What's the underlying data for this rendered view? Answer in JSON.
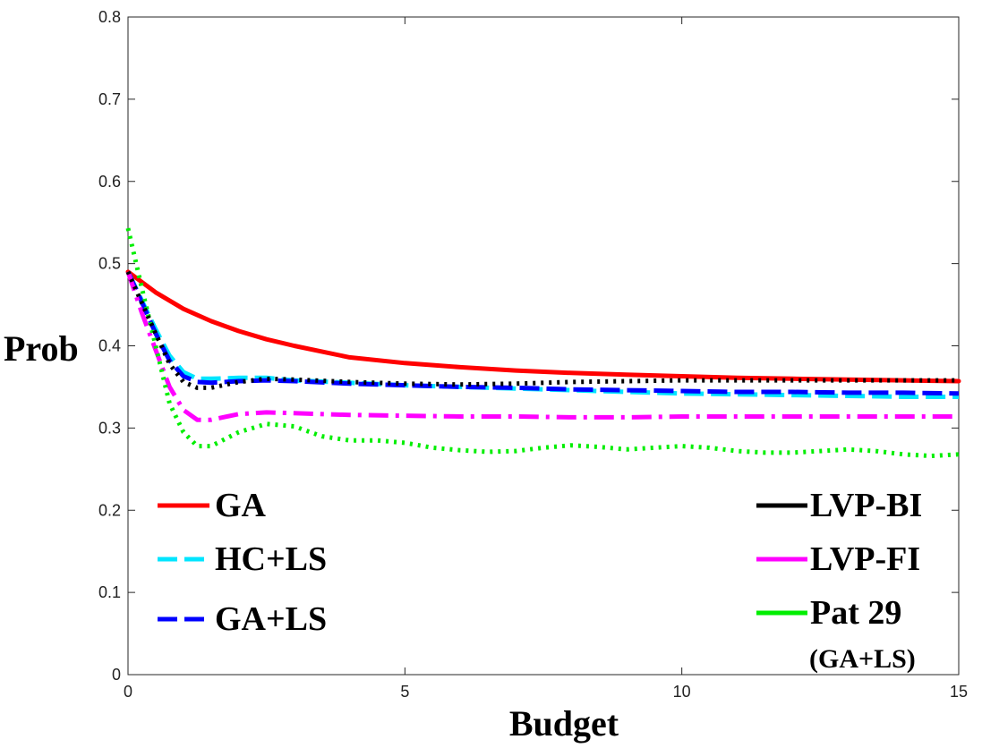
{
  "chart_data": {
    "type": "line",
    "xlabel": "Budget",
    "ylabel": "Prob",
    "xlim": [
      0,
      15
    ],
    "ylim": [
      0,
      0.8
    ],
    "xticks": [
      "0",
      "5",
      "10",
      "15"
    ],
    "yticks": [
      "0",
      "0.1",
      "0.2",
      "0.3",
      "0.4",
      "0.5",
      "0.6",
      "0.7",
      "0.8"
    ],
    "grid": false,
    "legend_left": [
      "GA",
      "HC+LS",
      "GA+LS"
    ],
    "legend_right": [
      "LVP-BI",
      "LVP-FI",
      "Pat 29",
      "(GA+LS)"
    ],
    "series": [
      {
        "name": "GA",
        "color": "#ff0000",
        "style": "solid",
        "x": [
          0,
          0.5,
          1,
          1.5,
          2,
          2.5,
          3,
          4,
          5,
          6,
          7,
          8,
          9,
          10,
          11,
          12,
          13,
          14,
          15
        ],
        "y": [
          0.49,
          0.465,
          0.445,
          0.43,
          0.418,
          0.408,
          0.4,
          0.386,
          0.379,
          0.374,
          0.37,
          0.367,
          0.365,
          0.363,
          0.361,
          0.36,
          0.359,
          0.358,
          0.357
        ]
      },
      {
        "name": "HC+LS",
        "color": "#00e5ff",
        "style": "dashed",
        "x": [
          0,
          0.25,
          0.5,
          0.75,
          1,
          1.25,
          1.5,
          2,
          2.5,
          3,
          4,
          5,
          6,
          7,
          8,
          9,
          10,
          11,
          12,
          13,
          14,
          15
        ],
        "y": [
          0.49,
          0.455,
          0.42,
          0.388,
          0.368,
          0.36,
          0.36,
          0.361,
          0.361,
          0.358,
          0.355,
          0.352,
          0.35,
          0.348,
          0.346,
          0.344,
          0.342,
          0.341,
          0.34,
          0.339,
          0.338,
          0.338
        ]
      },
      {
        "name": "GA+LS",
        "color": "#0000ff",
        "style": "dashed",
        "x": [
          0,
          0.25,
          0.5,
          0.75,
          1,
          1.25,
          1.5,
          2,
          2.5,
          3,
          4,
          5,
          6,
          7,
          8,
          9,
          10,
          11,
          12,
          13,
          14,
          15
        ],
        "y": [
          0.49,
          0.453,
          0.415,
          0.382,
          0.363,
          0.356,
          0.355,
          0.357,
          0.358,
          0.357,
          0.354,
          0.352,
          0.35,
          0.349,
          0.347,
          0.346,
          0.345,
          0.344,
          0.344,
          0.343,
          0.343,
          0.342
        ]
      },
      {
        "name": "LVP-BI",
        "color": "#000000",
        "style": "dotted",
        "x": [
          0,
          0.25,
          0.5,
          0.75,
          1,
          1.25,
          1.5,
          2,
          2.5,
          3,
          4,
          5,
          6,
          7,
          8,
          9,
          10,
          11,
          12,
          13,
          14,
          15
        ],
        "y": [
          0.49,
          0.452,
          0.415,
          0.378,
          0.356,
          0.349,
          0.349,
          0.356,
          0.36,
          0.359,
          0.356,
          0.354,
          0.353,
          0.354,
          0.356,
          0.357,
          0.358,
          0.358,
          0.358,
          0.358,
          0.358,
          0.358
        ]
      },
      {
        "name": "LVP-FI",
        "color": "#ff00ff",
        "style": "dashdot",
        "x": [
          0,
          0.25,
          0.5,
          0.75,
          1,
          1.25,
          1.5,
          2,
          2.5,
          3,
          4,
          5,
          6,
          7,
          8,
          9,
          10,
          11,
          12,
          13,
          14,
          15
        ],
        "y": [
          0.49,
          0.44,
          0.395,
          0.35,
          0.322,
          0.31,
          0.31,
          0.317,
          0.319,
          0.318,
          0.316,
          0.315,
          0.314,
          0.314,
          0.313,
          0.313,
          0.314,
          0.314,
          0.314,
          0.314,
          0.314,
          0.314
        ]
      },
      {
        "name": "Pat 29 (GA+LS)",
        "color": "#00ee00",
        "style": "dotted",
        "x": [
          0,
          0.25,
          0.5,
          0.75,
          1,
          1.25,
          1.5,
          2,
          2.5,
          3,
          3.5,
          4,
          4.5,
          5,
          5.5,
          6,
          6.5,
          7,
          7.5,
          8,
          8.5,
          9,
          9.5,
          10,
          10.5,
          11,
          11.5,
          12,
          12.5,
          13,
          13.5,
          14,
          14.5,
          15
        ],
        "y": [
          0.543,
          0.47,
          0.4,
          0.33,
          0.295,
          0.278,
          0.278,
          0.295,
          0.305,
          0.302,
          0.29,
          0.285,
          0.285,
          0.282,
          0.276,
          0.273,
          0.271,
          0.272,
          0.276,
          0.279,
          0.277,
          0.274,
          0.276,
          0.278,
          0.276,
          0.272,
          0.27,
          0.27,
          0.272,
          0.274,
          0.272,
          0.268,
          0.266,
          0.268
        ]
      }
    ]
  }
}
